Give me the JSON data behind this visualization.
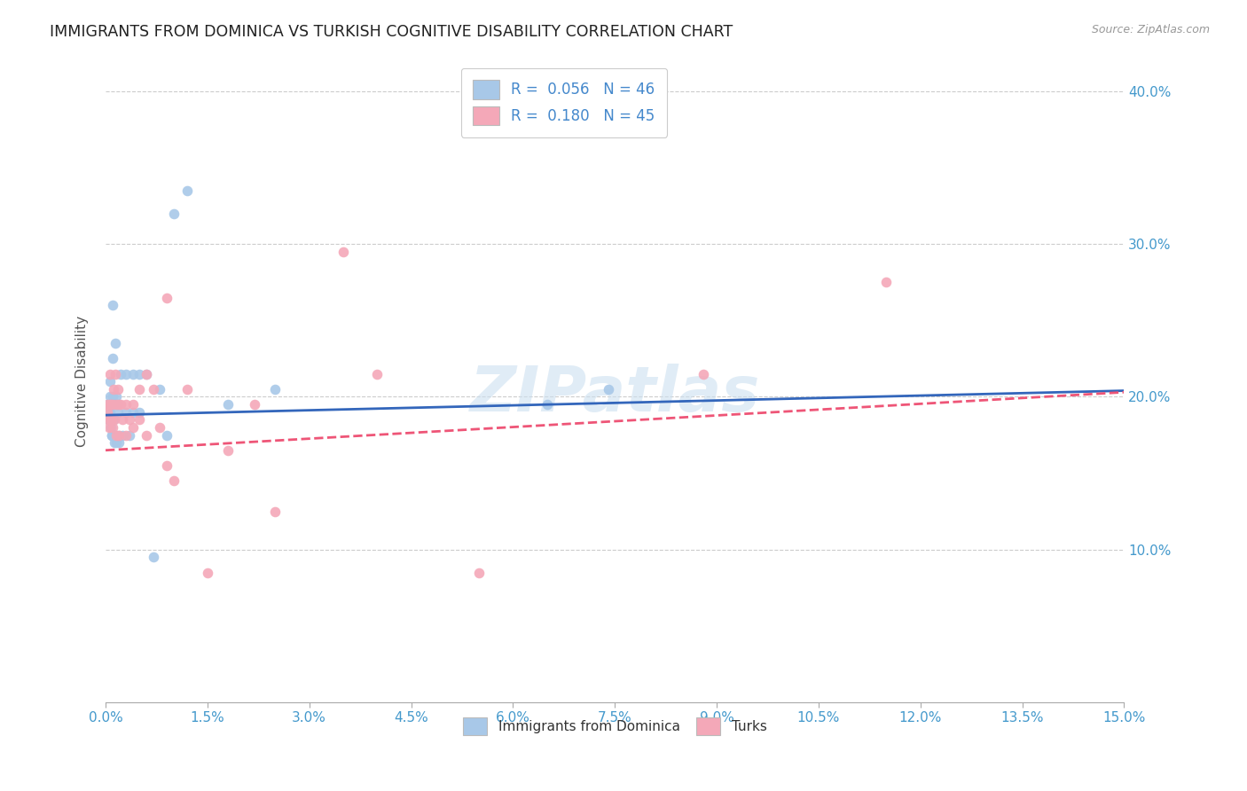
{
  "title": "IMMIGRANTS FROM DOMINICA VS TURKISH COGNITIVE DISABILITY CORRELATION CHART",
  "source": "Source: ZipAtlas.com",
  "xlim": [
    0.0,
    0.15
  ],
  "ylim": [
    0.0,
    0.42
  ],
  "ytick_min": 0.0,
  "legend_r1": "0.056",
  "legend_n1": "46",
  "legend_r2": "0.180",
  "legend_n2": "45",
  "label1": "Immigrants from Dominica",
  "label2": "Turks",
  "color1": "#a8c8e8",
  "color2": "#f4a8b8",
  "line1_color": "#3366bb",
  "line2_color": "#ee5577",
  "watermark": "ZIPatlas",
  "dominica_x": [
    0.0002,
    0.0003,
    0.0004,
    0.0005,
    0.0005,
    0.0006,
    0.0006,
    0.0007,
    0.0007,
    0.0008,
    0.0008,
    0.0009,
    0.0009,
    0.001,
    0.001,
    0.0011,
    0.0012,
    0.0012,
    0.0013,
    0.0014,
    0.0015,
    0.0015,
    0.0016,
    0.0017,
    0.0018,
    0.002,
    0.002,
    0.0022,
    0.0025,
    0.003,
    0.003,
    0.0035,
    0.004,
    0.004,
    0.005,
    0.005,
    0.006,
    0.007,
    0.008,
    0.009,
    0.01,
    0.012,
    0.018,
    0.025,
    0.065,
    0.074
  ],
  "dominica_y": [
    0.19,
    0.195,
    0.185,
    0.19,
    0.185,
    0.21,
    0.195,
    0.2,
    0.19,
    0.185,
    0.18,
    0.175,
    0.175,
    0.26,
    0.225,
    0.2,
    0.185,
    0.175,
    0.17,
    0.235,
    0.175,
    0.17,
    0.2,
    0.195,
    0.19,
    0.175,
    0.17,
    0.215,
    0.175,
    0.215,
    0.19,
    0.175,
    0.215,
    0.19,
    0.215,
    0.19,
    0.215,
    0.095,
    0.205,
    0.175,
    0.32,
    0.335,
    0.195,
    0.205,
    0.195,
    0.205
  ],
  "turks_x": [
    0.0002,
    0.0003,
    0.0004,
    0.0005,
    0.0006,
    0.0006,
    0.0007,
    0.0008,
    0.0009,
    0.001,
    0.0011,
    0.0012,
    0.0013,
    0.0014,
    0.0015,
    0.0016,
    0.0018,
    0.002,
    0.002,
    0.0022,
    0.0025,
    0.003,
    0.003,
    0.0035,
    0.004,
    0.004,
    0.005,
    0.005,
    0.006,
    0.006,
    0.007,
    0.008,
    0.009,
    0.009,
    0.01,
    0.012,
    0.015,
    0.018,
    0.022,
    0.025,
    0.035,
    0.04,
    0.055,
    0.088,
    0.115
  ],
  "turks_y": [
    0.195,
    0.19,
    0.185,
    0.18,
    0.215,
    0.195,
    0.185,
    0.195,
    0.185,
    0.195,
    0.18,
    0.205,
    0.185,
    0.215,
    0.195,
    0.175,
    0.205,
    0.195,
    0.175,
    0.195,
    0.185,
    0.175,
    0.195,
    0.185,
    0.195,
    0.18,
    0.205,
    0.185,
    0.215,
    0.175,
    0.205,
    0.18,
    0.155,
    0.265,
    0.145,
    0.205,
    0.085,
    0.165,
    0.195,
    0.125,
    0.295,
    0.215,
    0.085,
    0.215,
    0.275
  ],
  "line1_x0": 0.0,
  "line1_x1": 0.15,
  "line1_y0": 0.188,
  "line1_y1": 0.204,
  "line2_x0": 0.0,
  "line2_x1": 0.15,
  "line2_y0": 0.165,
  "line2_y1": 0.203
}
